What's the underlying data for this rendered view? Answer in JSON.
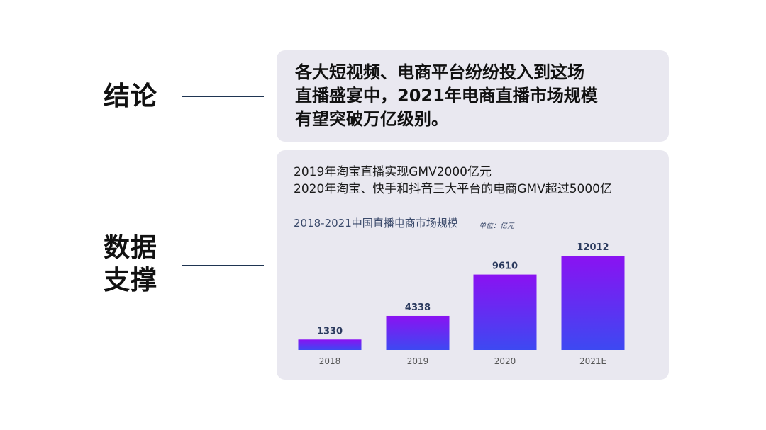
{
  "left_labels": {
    "conclusion": "结论",
    "evidence_line1": "数据",
    "evidence_line2": "支撑"
  },
  "conclusion": {
    "line1": "各大短视频、电商平台纷纷投入到这场",
    "line2": "直播盛宴中，2021年电商直播市场规模",
    "line3": "有望突破万亿级别。"
  },
  "facts": {
    "line1": "2019年淘宝直播实现GMV2000亿元",
    "line2": "2020年淘宝、快手和抖音三大平台的电商GMV超过5000亿"
  },
  "colors": {
    "bar_top": "#8a12f2",
    "bar_bottom": "#3d49f2",
    "value_label": "#2b3a5e",
    "tick_label": "#555555"
  },
  "chart_data": {
    "type": "bar",
    "title": "2018-2021中国直播电商市场规模",
    "unit": "单位：亿元",
    "categories": [
      "2018",
      "2019",
      "2020",
      "2021E"
    ],
    "values": [
      1330,
      4338,
      9610,
      12012
    ],
    "ylim": [
      0,
      12012
    ],
    "grid": false,
    "legend": "none"
  }
}
